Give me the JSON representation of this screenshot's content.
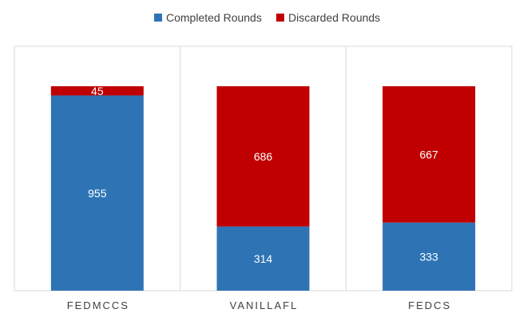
{
  "chart_data": {
    "type": "bar",
    "stacked": true,
    "categories": [
      "FEDMCCS",
      "VANILLAFL",
      "FEDCS"
    ],
    "series": [
      {
        "name": "Completed Rounds",
        "color": "#2e74b5",
        "values": [
          955,
          314,
          333
        ]
      },
      {
        "name": "Discarded Rounds",
        "color": "#c00000",
        "values": [
          45,
          686,
          667
        ]
      }
    ],
    "ylim": [
      0,
      1000
    ],
    "legend_position": "top",
    "grid": false,
    "category_separators": true
  }
}
